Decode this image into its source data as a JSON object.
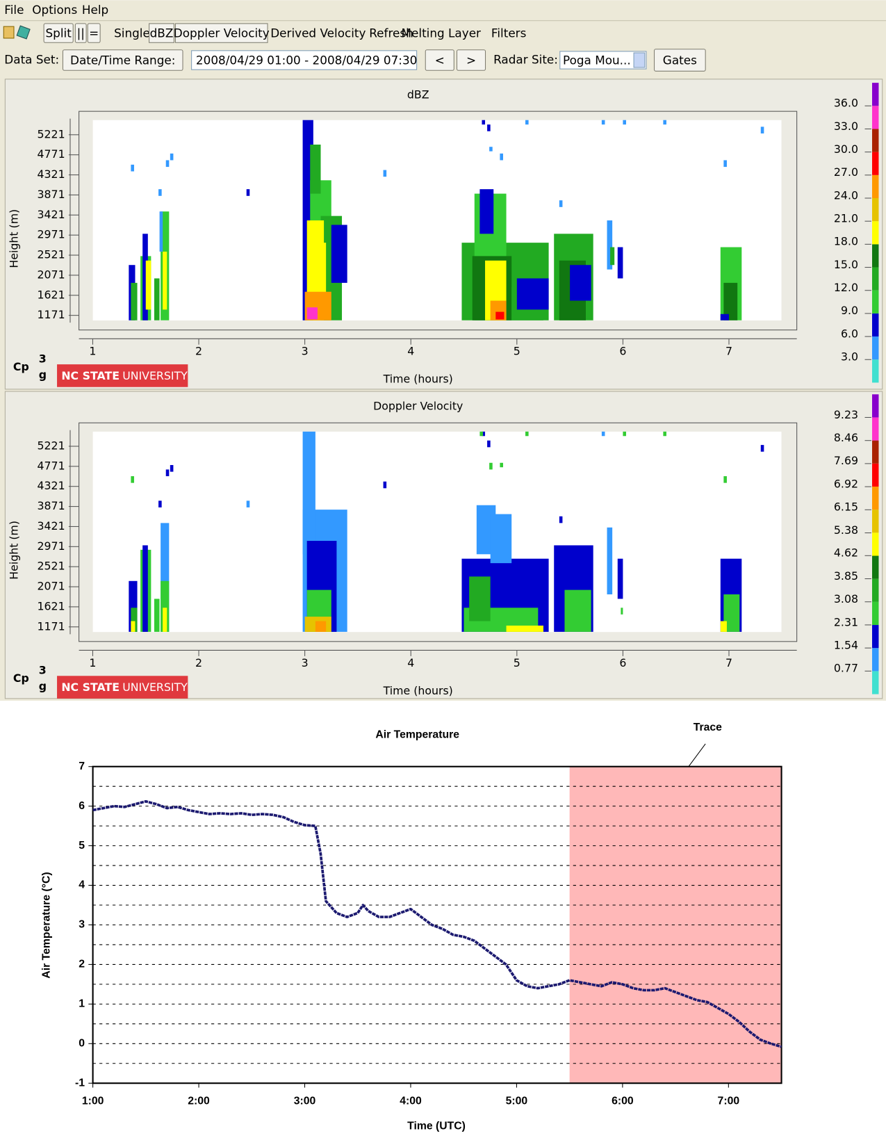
{
  "menu": [
    "File",
    "Options",
    "Help"
  ],
  "toolbar": {
    "buttons": [
      "Split",
      "||",
      "="
    ],
    "items": [
      "Single",
      "dBZ",
      "Doppler Velocity",
      "Derived Velocity",
      "Refresh",
      "Melting Layer",
      "Filters"
    ]
  },
  "dataset_bar": {
    "label": "Data Set:",
    "range_button": "Date/Time Range:",
    "range": "2008/04/29 01:00 - 2008/04/29 07:30",
    "prev": "<",
    "next": ">",
    "site_label": "Radar Site:",
    "site": "Poga Mou...",
    "gates": "Gates"
  },
  "chart_data": [
    {
      "type": "heatmap",
      "title": "dBZ",
      "x_label": "Time (hours)",
      "y_label": "Height (m)",
      "xlim": [
        0.87,
        7.64
      ],
      "ylim": [
        843,
        5746
      ],
      "xticks": [
        1,
        2,
        3,
        4,
        5,
        6,
        7
      ],
      "yticks": [
        1171,
        1621,
        2071,
        2521,
        2971,
        3421,
        3871,
        4321,
        4771,
        5221
      ],
      "clim": [
        0,
        39
      ],
      "colors": [
        "#40e0d0",
        "#3399ff",
        "#0000cc",
        "#33cc33",
        "#22aa22",
        "#117711",
        "#ffff00",
        "#e6c300",
        "#ff9900",
        "#ff0000",
        "#aa2200",
        "#ff33cc",
        "#8800cc"
      ],
      "colorbar_ticks": [
        {
          "value": 3,
          "label": "3.0"
        },
        {
          "value": 6,
          "label": "6.0"
        },
        {
          "value": 9,
          "label": "9.0"
        },
        {
          "value": 12,
          "label": "12.0"
        },
        {
          "value": 15,
          "label": "15.0"
        },
        {
          "value": 18,
          "label": "18.0"
        },
        {
          "value": 21,
          "label": "21.0"
        },
        {
          "value": 24,
          "label": "24.0"
        },
        {
          "value": 27,
          "label": "27.0"
        },
        {
          "value": 30,
          "label": "30.0"
        },
        {
          "value": 33,
          "label": "33.0"
        },
        {
          "value": 36,
          "label": "36.0"
        }
      ],
      "cells": [
        [
          1.34,
          1.4,
          1060,
          2300,
          7
        ],
        [
          1.36,
          1.42,
          1060,
          1900,
          12
        ],
        [
          1.45,
          1.55,
          1060,
          2500,
          10
        ],
        [
          1.47,
          1.52,
          1060,
          3000,
          7
        ],
        [
          1.5,
          1.55,
          1300,
          2400,
          19
        ],
        [
          1.58,
          1.63,
          1060,
          2000,
          12
        ],
        [
          1.64,
          1.72,
          1060,
          3500,
          10
        ],
        [
          1.66,
          1.7,
          1300,
          2600,
          19
        ],
        [
          1.63,
          1.66,
          2600,
          3500,
          5
        ],
        [
          1.36,
          1.39,
          4400,
          4550,
          5
        ],
        [
          1.69,
          1.72,
          4500,
          4650,
          5
        ],
        [
          1.73,
          1.76,
          4650,
          4800,
          5
        ],
        [
          1.62,
          1.65,
          3850,
          4000,
          5
        ],
        [
          2.45,
          2.48,
          3850,
          4000,
          7
        ],
        [
          3.74,
          3.77,
          4280,
          4430,
          5
        ],
        [
          2.98,
          3.08,
          1060,
          5550,
          8
        ],
        [
          3.05,
          3.25,
          1060,
          4200,
          10
        ],
        [
          3.15,
          3.35,
          1060,
          3400,
          13
        ],
        [
          3.25,
          3.4,
          1900,
          3200,
          7
        ],
        [
          3.02,
          3.18,
          1060,
          3300,
          18
        ],
        [
          3.05,
          3.2,
          1300,
          2800,
          20
        ],
        [
          3.0,
          3.25,
          1060,
          1700,
          26
        ],
        [
          3.02,
          3.12,
          1080,
          1350,
          33
        ],
        [
          3.05,
          3.15,
          3900,
          5000,
          14
        ],
        [
          4.48,
          5.3,
          1060,
          2800,
          12
        ],
        [
          4.6,
          4.9,
          1060,
          3900,
          10
        ],
        [
          4.65,
          4.78,
          3000,
          4000,
          7
        ],
        [
          4.58,
          4.95,
          1060,
          2500,
          16
        ],
        [
          4.7,
          4.9,
          1060,
          2400,
          20
        ],
        [
          4.75,
          4.9,
          1060,
          1500,
          24
        ],
        [
          4.8,
          4.88,
          1080,
          1250,
          29
        ],
        [
          4.95,
          5.25,
          1060,
          1800,
          14
        ],
        [
          5.0,
          5.3,
          1300,
          2000,
          7
        ],
        [
          4.67,
          4.7,
          5450,
          5550,
          7
        ],
        [
          4.72,
          4.75,
          5300,
          5450,
          7
        ],
        [
          4.74,
          4.77,
          4850,
          4950,
          5
        ],
        [
          4.84,
          4.87,
          4650,
          4800,
          5
        ],
        [
          5.08,
          5.11,
          5450,
          5550,
          5
        ],
        [
          5.8,
          5.83,
          5450,
          5550,
          5
        ],
        [
          6.0,
          6.03,
          5450,
          5550,
          5
        ],
        [
          6.38,
          6.41,
          5450,
          5550,
          5
        ],
        [
          7.3,
          7.33,
          5250,
          5400,
          5
        ],
        [
          6.95,
          6.98,
          4500,
          4650,
          5
        ],
        [
          5.4,
          5.43,
          3600,
          3750,
          5
        ],
        [
          5.35,
          5.72,
          1060,
          3000,
          12
        ],
        [
          5.4,
          5.65,
          1060,
          2400,
          15
        ],
        [
          5.5,
          5.7,
          1500,
          2300,
          7
        ],
        [
          5.85,
          5.9,
          2200,
          3300,
          5
        ],
        [
          5.88,
          5.92,
          2300,
          2700,
          12
        ],
        [
          5.95,
          6.0,
          2000,
          2700,
          7
        ],
        [
          6.92,
          7.12,
          1060,
          2700,
          10
        ],
        [
          6.95,
          7.08,
          1060,
          1900,
          15
        ],
        [
          6.92,
          7.0,
          1060,
          1200,
          7
        ]
      ],
      "logo": {
        "mark": "Cp",
        "sup": "3",
        "sub": "g",
        "university_bold": "NC STATE",
        "university": "UNIVERSITY"
      }
    },
    {
      "type": "heatmap",
      "title": "Doppler Velocity",
      "x_label": "Time (hours)",
      "y_label": "Height (m)",
      "xlim": [
        0.87,
        7.64
      ],
      "ylim": [
        843,
        5746
      ],
      "xticks": [
        1,
        2,
        3,
        4,
        5,
        6,
        7
      ],
      "yticks": [
        1171,
        1621,
        2071,
        2521,
        2971,
        3421,
        3871,
        4321,
        4771,
        5221
      ],
      "clim": [
        0,
        10
      ],
      "colors": [
        "#40e0d0",
        "#3399ff",
        "#0000cc",
        "#33cc33",
        "#22aa22",
        "#117711",
        "#ffff00",
        "#e6c300",
        "#ff9900",
        "#ff0000",
        "#aa2200",
        "#ff33cc",
        "#8800cc"
      ],
      "colorbar_ticks": [
        0.77,
        1.54,
        2.31,
        3.08,
        3.85,
        4.62,
        5.38,
        6.15,
        6.92,
        7.69,
        8.46,
        9.23
      ],
      "cells": [
        [
          1.34,
          1.42,
          1060,
          2200,
          2
        ],
        [
          1.36,
          1.42,
          1060,
          1600,
          3.3
        ],
        [
          1.36,
          1.4,
          1060,
          1300,
          4.9
        ],
        [
          1.45,
          1.55,
          1060,
          2900,
          3
        ],
        [
          1.47,
          1.52,
          1060,
          3000,
          2
        ],
        [
          1.58,
          1.63,
          1060,
          1800,
          3
        ],
        [
          1.64,
          1.72,
          1060,
          3500,
          1.2
        ],
        [
          1.64,
          1.72,
          1060,
          2200,
          2.7
        ],
        [
          1.66,
          1.7,
          1060,
          1600,
          5.2
        ],
        [
          1.36,
          1.39,
          4400,
          4550,
          3
        ],
        [
          1.69,
          1.72,
          4550,
          4700,
          2
        ],
        [
          1.73,
          1.76,
          4650,
          4800,
          2
        ],
        [
          1.62,
          1.65,
          3850,
          4000,
          2
        ],
        [
          2.45,
          2.48,
          3850,
          4000,
          1.2
        ],
        [
          3.74,
          3.77,
          4280,
          4430,
          2
        ],
        [
          2.98,
          3.4,
          1060,
          3800,
          1.2
        ],
        [
          2.98,
          3.1,
          2800,
          5550,
          1.2
        ],
        [
          3.02,
          3.3,
          1060,
          3100,
          2
        ],
        [
          3.02,
          3.25,
          1060,
          2000,
          2.7
        ],
        [
          3.0,
          3.25,
          1060,
          1400,
          5.4
        ],
        [
          3.1,
          3.2,
          1060,
          1300,
          6.4
        ],
        [
          4.48,
          5.3,
          1060,
          2700,
          2
        ],
        [
          4.62,
          4.8,
          2800,
          3900,
          1.2
        ],
        [
          4.75,
          4.95,
          2600,
          3700,
          1.2
        ],
        [
          4.5,
          5.2,
          1060,
          1600,
          2.7
        ],
        [
          4.55,
          4.75,
          1300,
          2300,
          3.2
        ],
        [
          4.9,
          5.25,
          1060,
          1200,
          4.9
        ],
        [
          4.67,
          4.7,
          5450,
          5550,
          2
        ],
        [
          4.65,
          4.68,
          5450,
          5550,
          3
        ],
        [
          4.72,
          4.75,
          5200,
          5350,
          2
        ],
        [
          4.74,
          4.77,
          4700,
          4850,
          3
        ],
        [
          4.84,
          4.87,
          4750,
          4850,
          3
        ],
        [
          5.08,
          5.11,
          5450,
          5550,
          3
        ],
        [
          5.8,
          5.83,
          5450,
          5550,
          1.2
        ],
        [
          6.0,
          6.03,
          5450,
          5550,
          3
        ],
        [
          6.38,
          6.41,
          5450,
          5550,
          3
        ],
        [
          7.3,
          7.33,
          5100,
          5250,
          2
        ],
        [
          6.95,
          6.98,
          4400,
          4550,
          3
        ],
        [
          5.4,
          5.43,
          3500,
          3650,
          2
        ],
        [
          5.35,
          5.72,
          1060,
          3000,
          2
        ],
        [
          5.45,
          5.7,
          1060,
          2000,
          2.7
        ],
        [
          5.85,
          5.9,
          1900,
          3400,
          1.2
        ],
        [
          5.95,
          6.0,
          1800,
          2700,
          2
        ],
        [
          5.98,
          6.0,
          1450,
          1600,
          3
        ],
        [
          6.92,
          7.12,
          1060,
          2700,
          2
        ],
        [
          6.95,
          7.1,
          1060,
          1900,
          2.7
        ],
        [
          6.92,
          6.98,
          1060,
          1300,
          4.9
        ]
      ],
      "logo": {
        "mark": "Cp",
        "sup": "3",
        "sub": "g",
        "university_bold": "NC STATE",
        "university": "UNIVERSITY"
      }
    },
    {
      "type": "line",
      "title": "Air Temperature",
      "x_label": "Time (UTC)",
      "y_label": "Air Temperature (°C)",
      "color": "#1c1a70",
      "x": [
        1.0,
        1.1,
        1.2,
        1.3,
        1.4,
        1.5,
        1.6,
        1.7,
        1.8,
        1.9,
        2.0,
        2.1,
        2.2,
        2.3,
        2.4,
        2.5,
        2.6,
        2.7,
        2.8,
        2.9,
        3.0,
        3.1,
        3.15,
        3.2,
        3.3,
        3.4,
        3.5,
        3.55,
        3.6,
        3.7,
        3.8,
        3.9,
        4.0,
        4.1,
        4.2,
        4.3,
        4.4,
        4.5,
        4.6,
        4.7,
        4.8,
        4.9,
        5.0,
        5.1,
        5.2,
        5.3,
        5.4,
        5.5,
        5.6,
        5.7,
        5.8,
        5.9,
        6.0,
        6.1,
        6.2,
        6.3,
        6.4,
        6.5,
        6.6,
        6.7,
        6.8,
        6.9,
        7.0,
        7.1,
        7.2,
        7.3,
        7.4,
        7.5
      ],
      "values": [
        5.9,
        5.95,
        6.0,
        5.98,
        6.05,
        6.12,
        6.05,
        5.95,
        5.98,
        5.9,
        5.85,
        5.8,
        5.82,
        5.8,
        5.82,
        5.78,
        5.8,
        5.78,
        5.72,
        5.6,
        5.52,
        5.5,
        4.8,
        3.6,
        3.3,
        3.2,
        3.3,
        3.5,
        3.35,
        3.2,
        3.2,
        3.3,
        3.4,
        3.2,
        3.0,
        2.9,
        2.75,
        2.7,
        2.6,
        2.4,
        2.2,
        2.0,
        1.6,
        1.45,
        1.4,
        1.45,
        1.5,
        1.6,
        1.55,
        1.5,
        1.45,
        1.55,
        1.5,
        1.4,
        1.35,
        1.35,
        1.4,
        1.3,
        1.2,
        1.1,
        1.05,
        0.9,
        0.75,
        0.55,
        0.3,
        0.1,
        0.0,
        -0.08
      ],
      "xlim": [
        1,
        7.5
      ],
      "ylim": [
        -1,
        7
      ],
      "xticks": [
        {
          "value": 1,
          "label": "1:00"
        },
        {
          "value": 2,
          "label": "2:00"
        },
        {
          "value": 3,
          "label": "3:00"
        },
        {
          "value": 4,
          "label": "4:00"
        },
        {
          "value": 5,
          "label": "5:00"
        },
        {
          "value": 6,
          "label": "6:00"
        },
        {
          "value": 7,
          "label": "7:00"
        }
      ],
      "yticks": [
        -1,
        0,
        1,
        2,
        3,
        4,
        5,
        6,
        7
      ],
      "minor_yticks": [
        -0.5,
        0.5,
        1.5,
        2.5,
        3.5,
        4.5,
        5.5,
        6.5
      ],
      "grid": true,
      "shade": {
        "x": [
          5.5,
          7.5
        ],
        "color": "#ffb8b8",
        "label": "Trace"
      }
    }
  ]
}
